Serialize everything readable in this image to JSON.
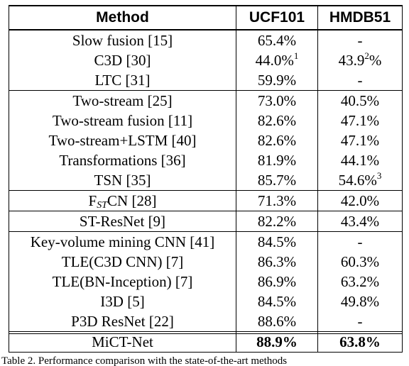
{
  "header": {
    "method": "Method",
    "ucf": "UCF101",
    "hmdb": "HMDB51"
  },
  "groups": [
    [
      {
        "method": "Slow fusion [15]",
        "ucf": "65.4%",
        "hmdb": "-"
      },
      {
        "method": "C3D [30]",
        "ucf": "44.0%",
        "ucf_sup": "1",
        "hmdb": "43.9",
        "hmdb_sup": "2",
        "hmdb_tail": "%"
      },
      {
        "method": "LTC [31]",
        "ucf": "59.9%",
        "hmdb": "-"
      }
    ],
    [
      {
        "method": "Two-stream [25]",
        "ucf": "73.0%",
        "hmdb": "40.5%"
      },
      {
        "method": "Two-stream fusion [11]",
        "ucf": "82.6%",
        "hmdb": "47.1%"
      },
      {
        "method": "Two-stream+LSTM [40]",
        "ucf": "82.6%",
        "hmdb": "47.1%"
      },
      {
        "method": "Transformations [36]",
        "ucf": "81.9%",
        "hmdb": "44.1%"
      },
      {
        "method": "TSN [35]",
        "ucf": "85.7%",
        "hmdb": "54.6%",
        "hmdb_sup": "3"
      }
    ],
    [
      {
        "method_pre": "F",
        "method_sub": "ST",
        "method_post": "CN [28]",
        "ucf": "71.3%",
        "hmdb": "42.0%"
      }
    ],
    [
      {
        "method": "ST-ResNet [9]",
        "ucf": "82.2%",
        "hmdb": "43.4%"
      }
    ],
    [
      {
        "method": "Key-volume mining CNN [41]",
        "ucf": "84.5%",
        "hmdb": "-"
      },
      {
        "method": "TLE(C3D CNN) [7]",
        "ucf": "86.3%",
        "hmdb": "60.3%"
      },
      {
        "method": "TLE(BN-Inception) [7]",
        "ucf": "86.9%",
        "hmdb": "63.2%"
      },
      {
        "method": "I3D [5]",
        "ucf": "84.5%",
        "hmdb": "49.8%"
      },
      {
        "method": "P3D ResNet [22]",
        "ucf": "88.6%",
        "hmdb": "-"
      }
    ]
  ],
  "final": {
    "method": "MiCT-Net",
    "ucf": "88.9%",
    "hmdb": "63.8%"
  },
  "caption": "Table 2. Performance comparison with the state-of-the-art methods"
}
